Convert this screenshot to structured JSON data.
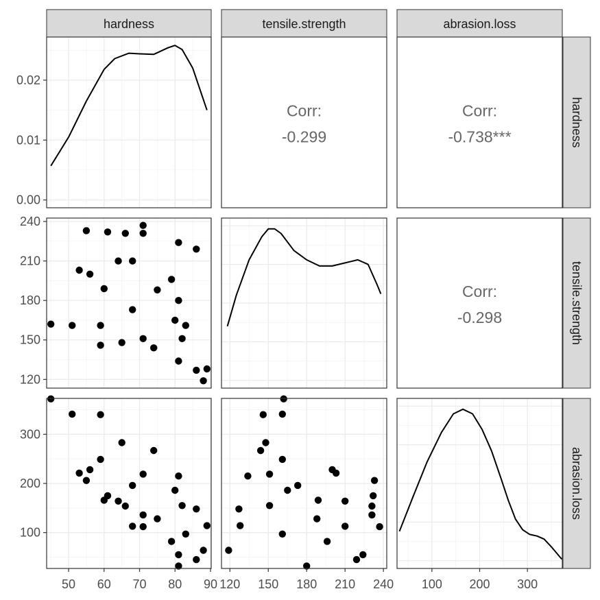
{
  "variables": [
    "hardness",
    "tensile.strength",
    "abrasion.loss"
  ],
  "chart_data": {
    "type": "scatter",
    "title": "",
    "layout": "scatterplot-matrix",
    "grid": true,
    "correlations": [
      {
        "row": "hardness",
        "col": "tensile.strength",
        "label": "Corr:",
        "value": "-0.299"
      },
      {
        "row": "hardness",
        "col": "abrasion.loss",
        "label": "Corr:",
        "value": "-0.738***"
      },
      {
        "row": "tensile.strength",
        "col": "abrasion.loss",
        "label": "Corr:",
        "value": "-0.298"
      }
    ],
    "axes": {
      "hardness": {
        "range": [
          43.8,
          90.2
        ],
        "ticks": [
          50,
          60,
          70,
          80,
          90
        ]
      },
      "tensile.strength": {
        "range": [
          113.4,
          242.6
        ],
        "ticks": [
          120,
          150,
          180,
          210,
          240
        ]
      },
      "abrasion.loss": {
        "range": [
          27,
          373
        ],
        "ticks": [
          100,
          200,
          300
        ]
      },
      "hardness_density": {
        "range": [
          -0.0013,
          0.0272
        ],
        "ticks": [
          "0.00",
          "0.01",
          "0.02"
        ],
        "tick_values": [
          0,
          0.01,
          0.02
        ]
      }
    },
    "density": {
      "hardness": {
        "x": [
          45,
          50,
          55,
          60,
          63,
          67,
          70,
          74,
          78,
          80,
          82,
          85,
          89
        ],
        "y": [
          0.0057,
          0.0105,
          0.0165,
          0.0218,
          0.0236,
          0.0245,
          0.0244,
          0.0243,
          0.0254,
          0.0258,
          0.0251,
          0.022,
          0.015
        ]
      },
      "tensile.strength": {
        "x": [
          118,
          125,
          135,
          145,
          150,
          155,
          160,
          170,
          180,
          190,
          200,
          210,
          220,
          228,
          235,
          238
        ],
        "y": [
          0.35,
          0.55,
          0.78,
          0.93,
          0.98,
          0.98,
          0.95,
          0.84,
          0.78,
          0.74,
          0.74,
          0.76,
          0.78,
          0.75,
          0.62,
          0.56
        ]
      },
      "abrasion.loss": {
        "x": [
          32,
          60,
          90,
          120,
          145,
          165,
          185,
          205,
          225,
          245,
          260,
          275,
          290,
          305,
          320,
          335,
          350,
          372
        ],
        "y": [
          0.19,
          0.41,
          0.64,
          0.83,
          0.95,
          0.98,
          0.95,
          0.85,
          0.71,
          0.53,
          0.39,
          0.27,
          0.2,
          0.17,
          0.16,
          0.14,
          0.09,
          0.01
        ]
      }
    },
    "points": {
      "hardness": [
        45,
        55,
        61,
        66,
        71,
        71,
        81,
        86,
        53,
        60,
        64,
        68,
        79,
        81,
        56,
        68,
        75,
        83,
        88,
        59,
        71,
        80,
        82,
        89,
        51,
        59,
        65,
        74,
        81,
        86
      ],
      "tensile.strength": [
        162,
        233,
        232,
        231,
        231,
        237,
        224,
        219,
        203,
        189,
        210,
        210,
        196,
        180,
        200,
        173,
        188,
        161,
        119,
        161,
        151,
        165,
        151,
        128,
        161,
        146,
        148,
        144,
        134,
        127
      ],
      "abrasion.loss": [
        372,
        206,
        175,
        154,
        136,
        112,
        55,
        45,
        221,
        166,
        164,
        113,
        82,
        32,
        228,
        196,
        128,
        97,
        64,
        249,
        219,
        186,
        155,
        114,
        341,
        340,
        283,
        267,
        215,
        148
      ]
    }
  }
}
